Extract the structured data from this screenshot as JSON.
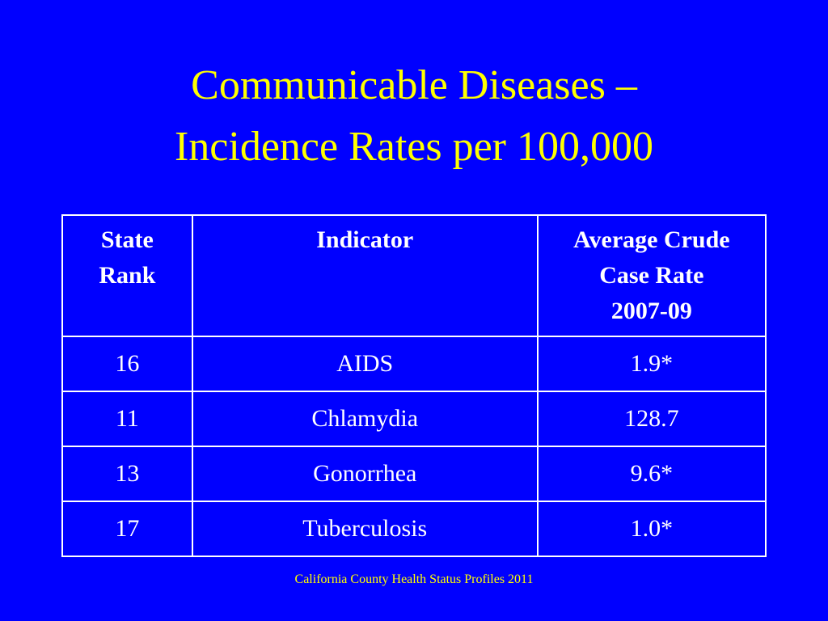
{
  "slide": {
    "title_line1": "Communicable Diseases –",
    "title_line2": "Incidence Rates per 100,000",
    "source": "California County Health Status Profiles 2011"
  },
  "table": {
    "headers": {
      "rank": [
        "State",
        "Rank"
      ],
      "indicator": "Indicator",
      "rate": [
        "Average Crude",
        "Case Rate",
        "2007-09"
      ]
    },
    "rows": [
      {
        "rank": "16",
        "indicator": "AIDS",
        "rate": "1.9*"
      },
      {
        "rank": "11",
        "indicator": "Chlamydia",
        "rate": "128.7"
      },
      {
        "rank": "13",
        "indicator": "Gonorrhea",
        "rate": "9.6*"
      },
      {
        "rank": "17",
        "indicator": "Tuberculosis",
        "rate": "1.0*"
      }
    ]
  },
  "colors": {
    "background": "#0000FF",
    "title": "#FFFF00",
    "table_text": "#FFFFFF"
  }
}
